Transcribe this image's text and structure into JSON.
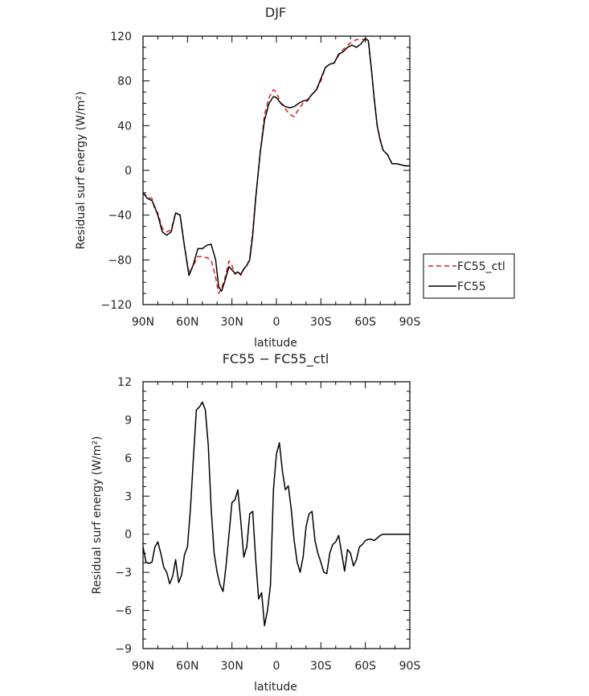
{
  "chart_data": [
    {
      "type": "line",
      "title": "DJF",
      "xlabel": "latitude",
      "ylabel": "Residual surf energy (W/m²)",
      "xlim": [
        90,
        -90
      ],
      "ylim": [
        -120,
        120
      ],
      "xticks": [
        90,
        60,
        30,
        0,
        -30,
        -60,
        -90
      ],
      "xtick_labels": [
        "90N",
        "60N",
        "30N",
        "0",
        "30S",
        "60S",
        "90S"
      ],
      "yticks": [
        -120,
        -80,
        -40,
        0,
        40,
        80,
        120
      ],
      "ytick_labels": [
        "−120",
        "−80",
        "−40",
        "0",
        "40",
        "80",
        "120"
      ],
      "legend_position": "right",
      "series": [
        {
          "name": "FC55_ctl",
          "color": "#e31a1c",
          "dash": "dashed",
          "x": [
            90,
            87,
            84,
            82,
            80,
            77,
            74,
            71,
            68,
            65,
            62,
            59,
            56,
            53,
            50,
            47,
            44,
            41,
            39,
            37,
            35,
            32,
            30,
            28,
            26,
            24,
            22,
            20,
            18,
            16,
            14,
            11,
            8,
            5,
            2,
            0,
            -3,
            -6,
            -9,
            -12,
            -15,
            -18,
            -21,
            -24,
            -27,
            -30,
            -33,
            -36,
            -39,
            -42,
            -45,
            -48,
            -51,
            -54,
            -57,
            -60,
            -62,
            -64,
            -66,
            -68,
            -70,
            -72,
            -75,
            -78,
            -81,
            -84,
            -87,
            -90
          ],
          "y": [
            -20,
            -24,
            -25,
            -35,
            -38,
            -52,
            -55,
            -53,
            -38,
            -40,
            -68,
            -92,
            -85,
            -77,
            -77,
            -78,
            -80,
            -96,
            -110,
            -105,
            -98,
            -81,
            -85,
            -93,
            -90,
            -94,
            -88,
            -86,
            -78,
            -55,
            -25,
            15,
            50,
            65,
            72,
            70,
            60,
            55,
            50,
            48,
            55,
            60,
            62,
            68,
            72,
            80,
            92,
            95,
            96,
            103,
            108,
            112,
            115,
            117,
            117,
            117,
            115,
            92,
            65,
            40,
            28,
            18,
            14,
            6,
            6,
            5,
            4,
            4
          ]
        },
        {
          "name": "FC55",
          "color": "#000000",
          "dash": "solid",
          "x": [
            90,
            87,
            84,
            82,
            80,
            77,
            74,
            71,
            68,
            65,
            62,
            59,
            56,
            53,
            50,
            47,
            44,
            41,
            39,
            37,
            35,
            32,
            30,
            28,
            26,
            24,
            22,
            20,
            18,
            16,
            14,
            11,
            8,
            5,
            2,
            0,
            -3,
            -6,
            -9,
            -12,
            -15,
            -18,
            -21,
            -24,
            -27,
            -30,
            -33,
            -36,
            -39,
            -42,
            -45,
            -48,
            -51,
            -54,
            -57,
            -60,
            -62,
            -64,
            -66,
            -68,
            -70,
            -72,
            -75,
            -78,
            -81,
            -84,
            -87,
            -90
          ],
          "y": [
            -20,
            -25,
            -27,
            -33,
            -40,
            -55,
            -58,
            -55,
            -38,
            -40,
            -68,
            -94,
            -84,
            -70,
            -70,
            -67,
            -66,
            -80,
            -104,
            -108,
            -100,
            -86,
            -89,
            -92,
            -91,
            -93,
            -88,
            -85,
            -80,
            -58,
            -25,
            15,
            45,
            60,
            66,
            65,
            60,
            57,
            56,
            57,
            60,
            62,
            63,
            68,
            72,
            82,
            92,
            95,
            96,
            104,
            106,
            110,
            112,
            110,
            113,
            118,
            116,
            92,
            64,
            40,
            27,
            18,
            14,
            6,
            6,
            5,
            4,
            4
          ]
        }
      ]
    },
    {
      "type": "line",
      "title": "FC55 − FC55_ctl",
      "xlabel": "latitude",
      "ylabel": "Residual surf energy (W/m²)",
      "xlim": [
        90,
        -90
      ],
      "ylim": [
        -9,
        12
      ],
      "xticks": [
        90,
        60,
        30,
        0,
        -30,
        -60,
        -90
      ],
      "xtick_labels": [
        "90N",
        "60N",
        "30N",
        "0",
        "30S",
        "60S",
        "90S"
      ],
      "yticks": [
        -9,
        -6,
        -3,
        0,
        3,
        6,
        9,
        12
      ],
      "ytick_labels": [
        "−9",
        "−6",
        "−3",
        "0",
        "3",
        "6",
        "9",
        "12"
      ],
      "series": [
        {
          "name": "",
          "color": "#000000",
          "dash": "solid",
          "x": [
            90,
            88,
            86,
            84,
            82,
            80,
            78,
            76,
            74,
            72,
            70,
            68,
            66,
            64,
            62,
            60,
            58,
            56,
            54,
            52,
            50,
            48,
            46,
            44,
            42,
            40,
            38,
            36,
            34,
            32,
            30,
            28,
            26,
            24,
            22,
            20,
            18,
            16,
            14,
            12,
            10,
            8,
            6,
            4,
            2,
            0,
            -2,
            -4,
            -6,
            -8,
            -10,
            -12,
            -14,
            -16,
            -18,
            -20,
            -22,
            -24,
            -26,
            -28,
            -30,
            -32,
            -34,
            -36,
            -38,
            -40,
            -42,
            -44,
            -46,
            -48,
            -50,
            -52,
            -54,
            -56,
            -58,
            -60,
            -62,
            -64,
            -66,
            -68,
            -70,
            -72,
            -74,
            -76,
            -78,
            -80,
            -82,
            -84,
            -86,
            -88,
            -90
          ],
          "y": [
            -1.0,
            -2.2,
            -2.3,
            -2.2,
            -1.0,
            -0.6,
            -1.5,
            -2.6,
            -3.0,
            -3.9,
            -3.3,
            -2.0,
            -3.8,
            -3.2,
            -1.6,
            -1.0,
            2.0,
            6.0,
            9.8,
            10.0,
            10.4,
            9.8,
            7.0,
            2.0,
            -1.5,
            -3.0,
            -4.0,
            -4.5,
            -2.5,
            0.0,
            2.5,
            2.7,
            3.5,
            1.0,
            -1.8,
            -1.0,
            1.6,
            1.8,
            -2.0,
            -5.1,
            -4.6,
            -7.2,
            -6.0,
            -4.0,
            3.5,
            6.3,
            7.2,
            5.0,
            3.5,
            3.8,
            2.0,
            -0.5,
            -2.2,
            -3.0,
            -1.8,
            0.6,
            1.6,
            1.8,
            -0.5,
            -1.5,
            -2.2,
            -3.0,
            -3.1,
            -1.5,
            -0.8,
            -0.6,
            -0.1,
            -1.5,
            -2.9,
            -1.2,
            -1.5,
            -2.5,
            -2.0,
            -1.0,
            -0.8,
            -0.5,
            -0.4,
            -0.4,
            -0.5,
            -0.3,
            -0.1,
            0.0,
            0.0,
            0.0,
            0.0,
            0.0,
            0.0,
            0.0,
            0.0,
            0.0,
            0.0
          ]
        }
      ]
    }
  ]
}
